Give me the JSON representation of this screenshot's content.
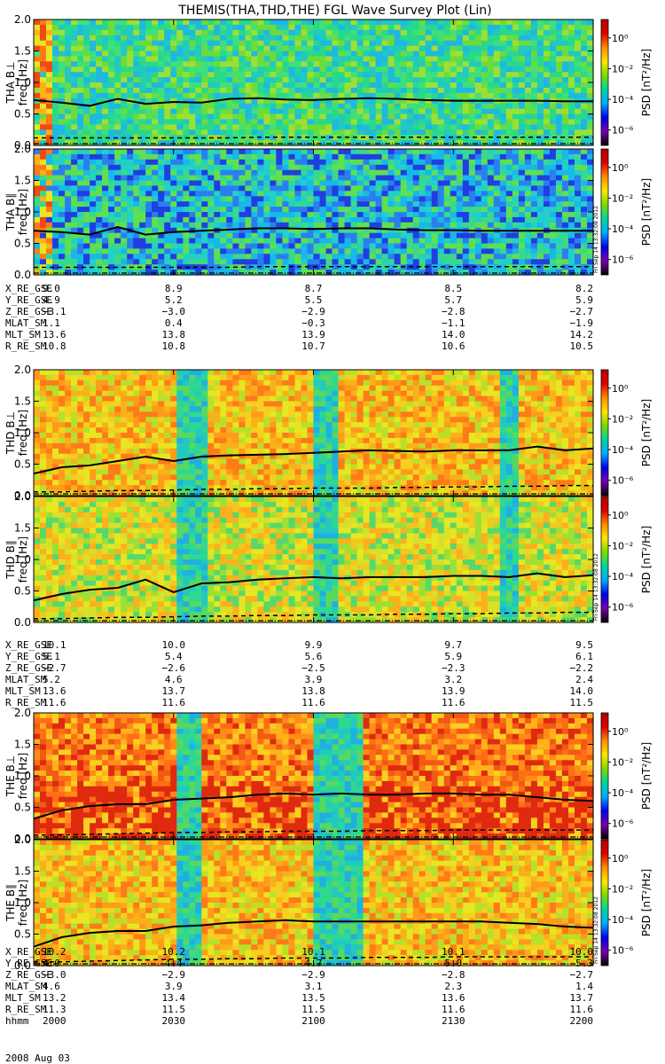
{
  "title": "THEMIS(THA,THD,THE) FGL Wave Survey Plot (Lin)",
  "colorbar": {
    "label": "PSD [nT²/Hz]",
    "tick_labels": [
      "10⁰",
      "10⁻²",
      "10⁻⁴",
      "10⁻⁶"
    ],
    "tick_log_values": [
      0,
      -2,
      -4,
      -6
    ],
    "range_log": [
      -7,
      1.2
    ],
    "colors": [
      "#000000",
      "#7a00b0",
      "#0000e6",
      "#00aaff",
      "#00d4a0",
      "#7cd800",
      "#ffe600",
      "#ff8c00",
      "#e00000",
      "#b00000"
    ]
  },
  "stamp": "Fri Sep 14 13:32:08 2012",
  "chart_data": [
    {
      "type": "heatmap",
      "ylabel": "THA B⊥",
      "yunit": "freq [Hz]",
      "ylim": [
        0,
        2.0
      ],
      "yticks": [
        "0.0",
        "0.5",
        "1.0",
        "1.5",
        "2.0"
      ],
      "dominant_level": "green-cyan",
      "early_hot_interval": "2000-2004",
      "solid_line_hz": [
        0.72,
        0.68,
        0.63,
        0.74,
        0.66,
        0.69,
        0.68,
        0.74,
        0.75,
        0.73,
        0.72,
        0.74,
        0.75,
        0.74,
        0.72,
        0.71,
        0.71,
        0.71,
        0.71,
        0.7,
        0.7
      ],
      "dashed_line_hz": [
        0.12,
        0.12,
        0.12,
        0.12,
        0.12,
        0.12,
        0.12,
        0.12,
        0.13,
        0.13,
        0.13,
        0.13,
        0.13,
        0.13,
        0.13,
        0.13,
        0.13,
        0.13,
        0.13,
        0.13,
        0.13
      ]
    },
    {
      "type": "heatmap",
      "ylabel": "THA B∥",
      "yunit": "freq [Hz]",
      "ylim": [
        0,
        2.0
      ],
      "yticks": [
        "0.0",
        "0.5",
        "1.0",
        "1.5",
        "2.0"
      ],
      "dominant_level": "blue-cyan",
      "early_hot_interval": "2000-2004",
      "solid_line_hz": [
        0.7,
        0.68,
        0.64,
        0.76,
        0.64,
        0.68,
        0.7,
        0.72,
        0.74,
        0.74,
        0.73,
        0.74,
        0.74,
        0.72,
        0.71,
        0.71,
        0.7,
        0.7,
        0.7,
        0.7,
        0.7
      ],
      "dashed_line_hz": [
        0.12,
        0.12,
        0.12,
        0.12,
        0.12,
        0.12,
        0.12,
        0.12,
        0.13,
        0.13,
        0.13,
        0.13,
        0.13,
        0.13,
        0.13,
        0.13,
        0.13,
        0.13,
        0.13,
        0.13,
        0.13
      ]
    },
    {
      "type": "heatmap",
      "ylabel": "THD B⊥",
      "yunit": "freq [Hz]",
      "ylim": [
        0,
        2.0
      ],
      "yticks": [
        "0.0",
        "0.5",
        "1.0",
        "1.5",
        "2.0"
      ],
      "dominant_level": "yellow-orange",
      "cool_bands_hhmm": [
        "2030",
        "2037",
        "2100",
        "2104",
        "2140",
        "2143"
      ],
      "solid_line_hz": [
        0.35,
        0.45,
        0.48,
        0.55,
        0.62,
        0.55,
        0.62,
        0.64,
        0.65,
        0.66,
        0.68,
        0.7,
        0.72,
        0.71,
        0.7,
        0.72,
        0.72,
        0.72,
        0.78,
        0.72,
        0.75
      ],
      "dashed_line_hz": [
        0.06,
        0.06,
        0.07,
        0.08,
        0.08,
        0.09,
        0.1,
        0.1,
        0.11,
        0.11,
        0.12,
        0.12,
        0.12,
        0.13,
        0.13,
        0.14,
        0.14,
        0.15,
        0.15,
        0.16,
        0.16
      ]
    },
    {
      "type": "heatmap",
      "ylabel": "THD B∥",
      "yunit": "freq [Hz]",
      "ylim": [
        0,
        2.0
      ],
      "yticks": [
        "0.0",
        "0.5",
        "1.0",
        "1.5",
        "2.0"
      ],
      "dominant_level": "yellow-green",
      "cool_bands_hhmm": [
        "2030",
        "2037",
        "2100",
        "2104",
        "2140",
        "2143"
      ],
      "solid_line_hz": [
        0.35,
        0.45,
        0.52,
        0.55,
        0.68,
        0.48,
        0.62,
        0.64,
        0.68,
        0.7,
        0.72,
        0.7,
        0.72,
        0.72,
        0.72,
        0.74,
        0.74,
        0.72,
        0.78,
        0.72,
        0.75
      ],
      "dashed_line_hz": [
        0.06,
        0.06,
        0.07,
        0.08,
        0.08,
        0.09,
        0.1,
        0.1,
        0.11,
        0.11,
        0.12,
        0.12,
        0.12,
        0.13,
        0.13,
        0.14,
        0.14,
        0.15,
        0.15,
        0.16,
        0.16
      ]
    },
    {
      "type": "heatmap",
      "ylabel": "THE B⊥",
      "yunit": "freq [Hz]",
      "ylim": [
        0,
        2.0
      ],
      "yticks": [
        "0.0",
        "0.5",
        "1.0",
        "1.5",
        "2.0"
      ],
      "dominant_level": "orange-red",
      "cool_bands_hhmm": [
        "2030",
        "2035",
        "2100",
        "2110"
      ],
      "solid_line_hz": [
        0.32,
        0.45,
        0.52,
        0.55,
        0.55,
        0.62,
        0.64,
        0.66,
        0.7,
        0.72,
        0.7,
        0.72,
        0.7,
        0.7,
        0.72,
        0.72,
        0.7,
        0.7,
        0.66,
        0.62,
        0.6
      ],
      "dashed_line_hz": [
        0.06,
        0.06,
        0.07,
        0.08,
        0.09,
        0.1,
        0.1,
        0.11,
        0.11,
        0.12,
        0.12,
        0.12,
        0.13,
        0.13,
        0.13,
        0.14,
        0.14,
        0.14,
        0.14,
        0.14,
        0.14
      ]
    },
    {
      "type": "heatmap",
      "ylabel": "THE B∥",
      "yunit": "freq [Hz]",
      "ylim": [
        0,
        2.0
      ],
      "yticks": [
        "0.0",
        "0.5",
        "1.0",
        "1.5",
        "2.0"
      ],
      "dominant_level": "yellow-orange",
      "cool_bands_hhmm": [
        "2030",
        "2035",
        "2100",
        "2110"
      ],
      "solid_line_hz": [
        0.3,
        0.45,
        0.52,
        0.55,
        0.55,
        0.62,
        0.64,
        0.68,
        0.7,
        0.72,
        0.7,
        0.7,
        0.7,
        0.7,
        0.7,
        0.7,
        0.7,
        0.68,
        0.66,
        0.62,
        0.6
      ],
      "dashed_line_hz": [
        0.06,
        0.06,
        0.07,
        0.08,
        0.09,
        0.1,
        0.1,
        0.11,
        0.11,
        0.12,
        0.12,
        0.12,
        0.13,
        0.13,
        0.13,
        0.14,
        0.14,
        0.14,
        0.14,
        0.14,
        0.14
      ]
    }
  ],
  "ephemeris": [
    {
      "probe": "THA",
      "rows": [
        {
          "name": "X_RE_GSE",
          "values": [
            "9.0",
            "8.9",
            "8.7",
            "8.5",
            "8.2"
          ]
        },
        {
          "name": "Y_RE_GSE",
          "values": [
            "4.9",
            "5.2",
            "5.5",
            "5.7",
            "5.9"
          ]
        },
        {
          "name": "Z_RE_GSE",
          "values": [
            "−3.1",
            "−3.0",
            "−2.9",
            "−2.8",
            "−2.7"
          ]
        },
        {
          "name": "MLAT_SM",
          "values": [
            "1.1",
            "0.4",
            "−0.3",
            "−1.1",
            "−1.9"
          ]
        },
        {
          "name": "MLT_SM",
          "values": [
            "13.6",
            "13.8",
            "13.9",
            "14.0",
            "14.2"
          ]
        },
        {
          "name": "R_RE_SM",
          "values": [
            "10.8",
            "10.8",
            "10.7",
            "10.6",
            "10.5"
          ]
        }
      ]
    },
    {
      "probe": "THD",
      "rows": [
        {
          "name": "X_RE_GSE",
          "values": [
            "10.1",
            "10.0",
            "9.9",
            "9.7",
            "9.5"
          ]
        },
        {
          "name": "Y_RE_GSE",
          "values": [
            "5.1",
            "5.4",
            "5.6",
            "5.9",
            "6.1"
          ]
        },
        {
          "name": "Z_RE_GSE",
          "values": [
            "−2.7",
            "−2.6",
            "−2.5",
            "−2.3",
            "−2.2"
          ]
        },
        {
          "name": "MLAT_SM",
          "values": [
            "5.2",
            "4.6",
            "3.9",
            "3.2",
            "2.4"
          ]
        },
        {
          "name": "MLT_SM",
          "values": [
            "13.6",
            "13.7",
            "13.8",
            "13.9",
            "14.0"
          ]
        },
        {
          "name": "R_RE_SM",
          "values": [
            "11.6",
            "11.6",
            "11.6",
            "11.6",
            "11.5"
          ]
        }
      ]
    },
    {
      "probe": "THE",
      "rows": [
        {
          "name": "X_RE_GSE",
          "values": [
            "10.2",
            "10.2",
            "10.1",
            "10.1",
            "10.0"
          ]
        },
        {
          "name": "Y_RE_GSE",
          "values": [
            "4.0",
            "4.4",
            "4.7",
            "5.0",
            "5.3"
          ]
        },
        {
          "name": "Z_RE_GSE",
          "values": [
            "−3.0",
            "−2.9",
            "−2.9",
            "−2.8",
            "−2.7"
          ]
        },
        {
          "name": "MLAT_SM",
          "values": [
            "4.6",
            "3.9",
            "3.1",
            "2.3",
            "1.4"
          ]
        },
        {
          "name": "MLT_SM",
          "values": [
            "13.2",
            "13.4",
            "13.5",
            "13.6",
            "13.7"
          ]
        },
        {
          "name": "R_RE_SM",
          "values": [
            "11.3",
            "11.5",
            "11.5",
            "11.6",
            "11.6"
          ]
        },
        {
          "name": "hhmm",
          "values": [
            "2000",
            "2030",
            "2100",
            "2130",
            "2200"
          ]
        }
      ]
    }
  ],
  "date_label": "2008 Aug 03"
}
